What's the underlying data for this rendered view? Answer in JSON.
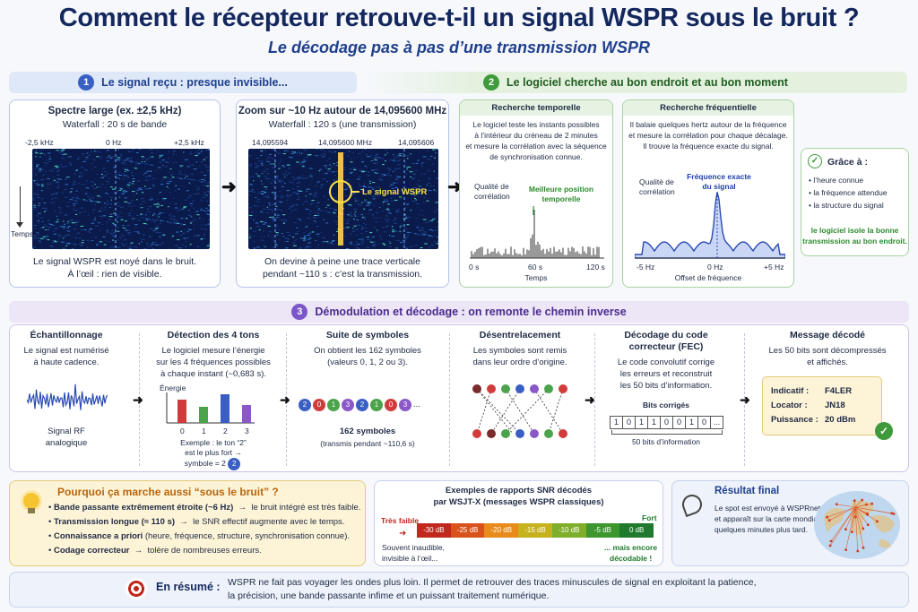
{
  "header": {
    "title": "Comment le récepteur retrouve-t-il un signal WSPR sous le bruit ?",
    "subtitle": "Le décodage pas à pas d’une transmission WSPR"
  },
  "section1": {
    "num": "1",
    "title": "Le signal reçu : presque invisible..."
  },
  "section2": {
    "num": "2",
    "title": "Le logiciel cherche au bon endroit et au bon moment"
  },
  "section3": {
    "num": "3",
    "title": "Démodulation et décodage : on remonte le chemin inverse"
  },
  "wide": {
    "title": "Spectre large (ex. ±2,5 kHz)",
    "sub": "Waterfall : 20 s de bande",
    "ticks": [
      "-2,5 kHz",
      "0 Hz",
      "+2,5 kHz"
    ],
    "axis": "Temps",
    "cap1": "Le signal WSPR est noyé dans le bruit.",
    "cap2": "À l’œil : rien de visible."
  },
  "zoom": {
    "title": "Zoom sur ~10 Hz autour de 14,095600 MHz",
    "sub": "Waterfall : 120 s (une transmission)",
    "ticks": [
      "14,095594",
      "14,095600 MHz",
      "14,095606"
    ],
    "label": "Le signal WSPR",
    "cap1": "On devine à peine une trace verticale",
    "cap2": "pendant ~110 s : c’est la transmission."
  },
  "temporal": {
    "title": "Recherche temporelle",
    "desc": [
      "Le logiciel teste les instants possibles",
      "à l’intérieur du créneau de 2 minutes",
      "et mesure la corrélation avec la séquence",
      "de synchronisation connue."
    ],
    "ylabel": [
      "Qualité de",
      "corrélation"
    ],
    "peak": [
      "Meilleure position",
      "temporelle"
    ],
    "xticks": [
      "0 s",
      "60 s",
      "120 s"
    ],
    "xlabel": "Temps"
  },
  "freq": {
    "title": "Recherche fréquentielle",
    "desc": [
      "Il balaie quelques hertz autour de la fréquence",
      "et mesure la corrélation pour chaque décalage.",
      "Il trouve la fréquence exacte du signal."
    ],
    "ylabel": [
      "Qualité de",
      "corrélation"
    ],
    "peak": [
      "Fréquence exacte",
      "du signal"
    ],
    "xticks": [
      "-5 Hz",
      "0 Hz",
      "+5 Hz"
    ],
    "xlabel": "Offset de fréquence"
  },
  "grace": {
    "title": "Grâce à :",
    "items": [
      "l’heure connue",
      "la fréquence attendue",
      "la structure du signal"
    ],
    "foot": [
      "le logiciel isole la bonne",
      "transmission au bon endroit."
    ]
  },
  "steps": {
    "s1": {
      "title": "Échantillonnage",
      "desc": [
        "Le signal est numérisé",
        "à haute cadence."
      ],
      "cap": [
        "Signal RF",
        "analogique"
      ]
    },
    "s2": {
      "title": "Détection des 4 tons",
      "desc": [
        "Le logiciel mesure l’énergie",
        "sur les 4 fréquences possibles",
        "à chaque instant (~0,683 s)."
      ],
      "ylabel": "Énergie",
      "x": [
        "0",
        "1",
        "2",
        "3"
      ],
      "cap": [
        "Exemple : le ton “2”",
        "est le plus fort →",
        "symbole = 2"
      ],
      "badge": "2"
    },
    "s3": {
      "title": "Suite de symboles",
      "desc": [
        "On obtient les 162 symboles",
        "(valeurs 0, 1, 2 ou 3)."
      ],
      "symbols": [
        "2",
        "0",
        "1",
        "3",
        "2",
        "1",
        "0",
        "3"
      ],
      "more": "...",
      "cap1": "162 symboles",
      "cap2": "(transmis pendant ~110,6 s)"
    },
    "s4": {
      "title": "Désentrelacement",
      "desc": [
        "Les symboles sont remis",
        "dans leur ordre d’origine."
      ]
    },
    "s5": {
      "title": "Décodage du code",
      "title2": "correcteur (FEC)",
      "desc": [
        "Le code convolutif corrige",
        "les erreurs et reconstruit",
        "les 50 bits d’information."
      ],
      "bitsLabel": "Bits corrigés",
      "bits": [
        "1",
        "0",
        "1",
        "1",
        "0",
        "0",
        "1",
        "0"
      ],
      "more": "...",
      "cap": "50 bits d’information"
    },
    "s6": {
      "title": "Message décodé",
      "desc": [
        "Les 50 bits sont décompressés",
        "et affichés."
      ],
      "rows": [
        {
          "k": "Indicatif :",
          "v": "F4LER"
        },
        {
          "k": "Locator :",
          "v": "JN18"
        },
        {
          "k": "Puissance :",
          "v": "20 dBm"
        }
      ]
    }
  },
  "why": {
    "title": "Pourquoi ça marche aussi “sous le bruit” ?",
    "items": [
      {
        "b": "Bande passante extrêmement étroite (~6 Hz)",
        "t": "le bruit intégré est très faible."
      },
      {
        "b": "Transmission longue (≈ 110 s)",
        "t": "le SNR effectif augmente avec le temps."
      },
      {
        "b": "Connaissance a priori",
        "t": "(heure, fréquence, structure, synchronisation connue)."
      },
      {
        "b": "Codage correcteur",
        "t": "tolère de nombreuses erreurs."
      }
    ]
  },
  "snr": {
    "title1": "Exemples de rapports SNR décodés",
    "title2": "par WSJT-X (messages WSPR classiques)",
    "weak": "Très faible",
    "strong": "Fort",
    "cells": [
      "-30 dB",
      "-25 dB",
      "-20 dB",
      "-15 dB",
      "-10 dB",
      "-5 dB",
      "0 dB"
    ],
    "colors": [
      "#c0271d",
      "#d9521c",
      "#e98b1b",
      "#c6b21d",
      "#7fae2a",
      "#3e962f",
      "#1f7a2d"
    ],
    "left": [
      "Souvent inaudible,",
      "invisible à l’œil..."
    ],
    "right": [
      "... mais encore",
      "décodable !"
    ]
  },
  "result": {
    "title": "Résultat final",
    "desc": [
      "Le spot est envoyé à WSPRnet",
      "et apparaît sur la carte mondiale",
      "quelques minutes plus tard."
    ]
  },
  "summary": {
    "label": "En résumé :",
    "line1": "WSPR ne fait pas voyager les ondes plus loin. Il permet de retrouver des traces minuscules de signal en exploitant la patience,",
    "line2": "la précision, une bande passante infime et un puissant traitement numérique."
  }
}
